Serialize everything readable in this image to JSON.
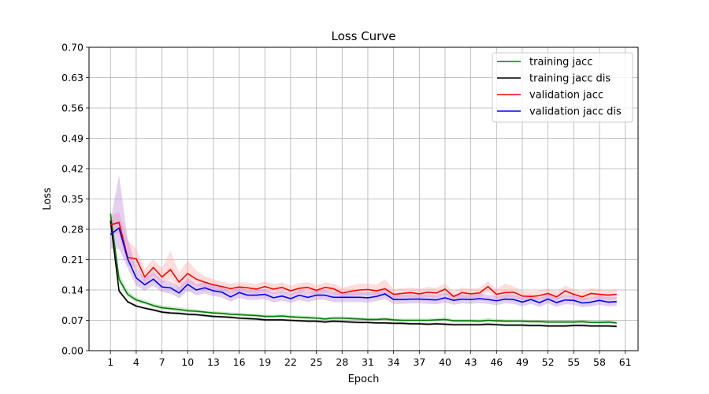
{
  "chart_data": {
    "type": "line",
    "title": "Loss Curve",
    "xlabel": "Epoch",
    "ylabel": "Loss",
    "xlim": [
      -1.5,
      62.5
    ],
    "ylim": [
      0,
      0.7
    ],
    "xticks": [
      1,
      4,
      7,
      10,
      13,
      16,
      19,
      22,
      25,
      28,
      31,
      34,
      37,
      40,
      43,
      46,
      49,
      52,
      55,
      58,
      61
    ],
    "yticks": [
      0.0,
      0.07,
      0.14,
      0.21,
      0.28,
      0.35,
      0.42,
      0.49,
      0.56,
      0.63,
      0.7
    ],
    "ytick_labels": [
      "0.00",
      "0.07",
      "0.14",
      "0.21",
      "0.28",
      "0.35",
      "0.42",
      "0.49",
      "0.56",
      "0.63",
      "0.70"
    ],
    "grid": true,
    "legend_position": "top-right",
    "x": [
      1,
      2,
      3,
      4,
      5,
      6,
      7,
      8,
      9,
      10,
      11,
      12,
      13,
      14,
      15,
      16,
      17,
      18,
      19,
      20,
      21,
      22,
      23,
      24,
      25,
      26,
      27,
      28,
      29,
      30,
      31,
      32,
      33,
      34,
      35,
      36,
      37,
      38,
      39,
      40,
      41,
      42,
      43,
      44,
      45,
      46,
      47,
      48,
      49,
      50,
      51,
      52,
      53,
      54,
      55,
      56,
      57,
      58,
      59,
      60
    ],
    "series": [
      {
        "name": "training jacc",
        "color": "#008000",
        "values": [
          0.316,
          0.165,
          0.13,
          0.117,
          0.111,
          0.104,
          0.099,
          0.097,
          0.095,
          0.092,
          0.091,
          0.089,
          0.087,
          0.086,
          0.084,
          0.083,
          0.082,
          0.081,
          0.079,
          0.079,
          0.08,
          0.078,
          0.077,
          0.076,
          0.075,
          0.073,
          0.075,
          0.075,
          0.074,
          0.073,
          0.072,
          0.072,
          0.073,
          0.071,
          0.07,
          0.07,
          0.07,
          0.07,
          0.071,
          0.072,
          0.069,
          0.069,
          0.069,
          0.068,
          0.07,
          0.069,
          0.068,
          0.068,
          0.068,
          0.067,
          0.067,
          0.066,
          0.066,
          0.066,
          0.066,
          0.067,
          0.065,
          0.065,
          0.066,
          0.064
        ],
        "band_low": [
          0.3,
          0.155,
          0.124,
          0.113,
          0.107,
          0.1,
          0.095,
          0.093,
          0.091,
          0.089,
          0.088,
          0.086,
          0.084,
          0.083,
          0.081,
          0.08,
          0.079,
          0.078,
          0.076,
          0.076,
          0.077,
          0.075,
          0.074,
          0.073,
          0.072,
          0.07,
          0.072,
          0.072,
          0.071,
          0.07,
          0.069,
          0.069,
          0.07,
          0.068,
          0.067,
          0.067,
          0.067,
          0.067,
          0.068,
          0.069,
          0.066,
          0.066,
          0.066,
          0.065,
          0.066,
          0.066,
          0.065,
          0.065,
          0.065,
          0.064,
          0.064,
          0.063,
          0.063,
          0.063,
          0.063,
          0.064,
          0.062,
          0.062,
          0.063,
          0.061
        ],
        "band_high": [
          0.332,
          0.178,
          0.138,
          0.122,
          0.116,
          0.109,
          0.104,
          0.102,
          0.1,
          0.097,
          0.095,
          0.093,
          0.091,
          0.09,
          0.088,
          0.087,
          0.086,
          0.085,
          0.083,
          0.083,
          0.084,
          0.082,
          0.081,
          0.08,
          0.079,
          0.077,
          0.079,
          0.079,
          0.078,
          0.077,
          0.076,
          0.076,
          0.077,
          0.075,
          0.074,
          0.074,
          0.074,
          0.074,
          0.075,
          0.076,
          0.073,
          0.073,
          0.073,
          0.072,
          0.075,
          0.073,
          0.072,
          0.072,
          0.072,
          0.071,
          0.071,
          0.07,
          0.07,
          0.07,
          0.07,
          0.071,
          0.069,
          0.069,
          0.07,
          0.068
        ]
      },
      {
        "name": "training jacc dis",
        "color": "#000000",
        "values": [
          0.3,
          0.138,
          0.113,
          0.103,
          0.098,
          0.094,
          0.089,
          0.087,
          0.086,
          0.084,
          0.083,
          0.081,
          0.079,
          0.078,
          0.077,
          0.075,
          0.074,
          0.073,
          0.071,
          0.071,
          0.071,
          0.07,
          0.069,
          0.068,
          0.068,
          0.066,
          0.068,
          0.067,
          0.066,
          0.065,
          0.065,
          0.064,
          0.064,
          0.063,
          0.063,
          0.062,
          0.062,
          0.061,
          0.062,
          0.061,
          0.06,
          0.06,
          0.06,
          0.06,
          0.061,
          0.06,
          0.059,
          0.059,
          0.059,
          0.058,
          0.058,
          0.057,
          0.057,
          0.057,
          0.058,
          0.058,
          0.057,
          0.057,
          0.057,
          0.056
        ],
        "band_low": [
          0.29,
          0.133,
          0.11,
          0.1,
          0.095,
          0.091,
          0.086,
          0.084,
          0.083,
          0.081,
          0.08,
          0.078,
          0.076,
          0.075,
          0.074,
          0.072,
          0.071,
          0.07,
          0.068,
          0.068,
          0.068,
          0.067,
          0.066,
          0.065,
          0.065,
          0.063,
          0.065,
          0.064,
          0.063,
          0.062,
          0.062,
          0.061,
          0.061,
          0.06,
          0.06,
          0.059,
          0.059,
          0.058,
          0.059,
          0.058,
          0.057,
          0.057,
          0.057,
          0.057,
          0.058,
          0.057,
          0.056,
          0.056,
          0.056,
          0.055,
          0.055,
          0.054,
          0.054,
          0.054,
          0.055,
          0.055,
          0.054,
          0.054,
          0.054,
          0.053
        ],
        "band_high": [
          0.31,
          0.143,
          0.116,
          0.106,
          0.101,
          0.097,
          0.092,
          0.09,
          0.089,
          0.087,
          0.086,
          0.084,
          0.082,
          0.081,
          0.08,
          0.078,
          0.077,
          0.076,
          0.074,
          0.074,
          0.074,
          0.073,
          0.072,
          0.071,
          0.071,
          0.069,
          0.071,
          0.07,
          0.069,
          0.068,
          0.068,
          0.067,
          0.067,
          0.066,
          0.066,
          0.065,
          0.065,
          0.064,
          0.065,
          0.064,
          0.063,
          0.063,
          0.063,
          0.063,
          0.064,
          0.063,
          0.062,
          0.062,
          0.062,
          0.061,
          0.061,
          0.06,
          0.06,
          0.06,
          0.061,
          0.061,
          0.06,
          0.06,
          0.06,
          0.059
        ]
      },
      {
        "name": "validation jacc",
        "color": "#ff0000",
        "band_color": "#ffaaaa",
        "values": [
          0.29,
          0.296,
          0.215,
          0.212,
          0.17,
          0.192,
          0.17,
          0.187,
          0.158,
          0.178,
          0.165,
          0.158,
          0.152,
          0.148,
          0.143,
          0.147,
          0.145,
          0.142,
          0.148,
          0.142,
          0.146,
          0.138,
          0.144,
          0.146,
          0.139,
          0.146,
          0.143,
          0.133,
          0.137,
          0.14,
          0.141,
          0.138,
          0.143,
          0.13,
          0.132,
          0.134,
          0.131,
          0.135,
          0.133,
          0.142,
          0.125,
          0.134,
          0.131,
          0.133,
          0.148,
          0.13,
          0.134,
          0.135,
          0.126,
          0.125,
          0.127,
          0.132,
          0.124,
          0.138,
          0.13,
          0.124,
          0.132,
          0.13,
          0.128,
          0.13
        ],
        "band_low": [
          0.27,
          0.27,
          0.195,
          0.192,
          0.155,
          0.175,
          0.155,
          0.165,
          0.14,
          0.158,
          0.15,
          0.145,
          0.14,
          0.137,
          0.132,
          0.135,
          0.133,
          0.131,
          0.136,
          0.131,
          0.134,
          0.128,
          0.133,
          0.134,
          0.128,
          0.134,
          0.131,
          0.123,
          0.126,
          0.128,
          0.129,
          0.127,
          0.128,
          0.12,
          0.122,
          0.124,
          0.121,
          0.124,
          0.122,
          0.13,
          0.116,
          0.123,
          0.121,
          0.122,
          0.135,
          0.12,
          0.122,
          0.123,
          0.116,
          0.116,
          0.117,
          0.121,
          0.115,
          0.126,
          0.12,
          0.115,
          0.121,
          0.12,
          0.118,
          0.12
        ],
        "band_high": [
          0.31,
          0.32,
          0.255,
          0.235,
          0.19,
          0.212,
          0.19,
          0.23,
          0.18,
          0.208,
          0.185,
          0.172,
          0.165,
          0.16,
          0.155,
          0.158,
          0.157,
          0.154,
          0.16,
          0.154,
          0.158,
          0.15,
          0.156,
          0.158,
          0.151,
          0.158,
          0.155,
          0.145,
          0.15,
          0.155,
          0.155,
          0.152,
          0.165,
          0.142,
          0.144,
          0.146,
          0.143,
          0.147,
          0.145,
          0.155,
          0.137,
          0.146,
          0.143,
          0.145,
          0.16,
          0.142,
          0.155,
          0.148,
          0.138,
          0.137,
          0.139,
          0.144,
          0.136,
          0.15,
          0.142,
          0.136,
          0.144,
          0.142,
          0.14,
          0.142
        ]
      },
      {
        "name": "validation jacc dis",
        "color": "#0000ff",
        "band_color": "#bb88dd",
        "values": [
          0.268,
          0.283,
          0.212,
          0.168,
          0.152,
          0.165,
          0.147,
          0.145,
          0.133,
          0.153,
          0.14,
          0.145,
          0.138,
          0.135,
          0.124,
          0.134,
          0.128,
          0.128,
          0.13,
          0.122,
          0.126,
          0.12,
          0.128,
          0.123,
          0.128,
          0.128,
          0.123,
          0.123,
          0.123,
          0.123,
          0.122,
          0.125,
          0.131,
          0.118,
          0.118,
          0.119,
          0.119,
          0.118,
          0.117,
          0.122,
          0.116,
          0.119,
          0.118,
          0.12,
          0.118,
          0.115,
          0.119,
          0.118,
          0.112,
          0.118,
          0.111,
          0.119,
          0.111,
          0.117,
          0.116,
          0.11,
          0.112,
          0.116,
          0.112,
          0.113
        ],
        "band_low": [
          0.235,
          0.235,
          0.19,
          0.15,
          0.138,
          0.15,
          0.135,
          0.132,
          0.121,
          0.138,
          0.128,
          0.132,
          0.126,
          0.123,
          0.113,
          0.122,
          0.117,
          0.117,
          0.119,
          0.111,
          0.115,
          0.11,
          0.117,
          0.112,
          0.117,
          0.117,
          0.112,
          0.112,
          0.112,
          0.112,
          0.111,
          0.114,
          0.119,
          0.108,
          0.108,
          0.109,
          0.109,
          0.108,
          0.107,
          0.111,
          0.106,
          0.109,
          0.108,
          0.11,
          0.108,
          0.105,
          0.109,
          0.108,
          0.102,
          0.108,
          0.101,
          0.109,
          0.101,
          0.107,
          0.106,
          0.1,
          0.102,
          0.106,
          0.102,
          0.103
        ],
        "band_high": [
          0.3,
          0.405,
          0.26,
          0.19,
          0.168,
          0.182,
          0.162,
          0.16,
          0.147,
          0.168,
          0.153,
          0.158,
          0.151,
          0.148,
          0.136,
          0.147,
          0.14,
          0.14,
          0.142,
          0.134,
          0.138,
          0.131,
          0.14,
          0.135,
          0.14,
          0.14,
          0.135,
          0.135,
          0.135,
          0.135,
          0.134,
          0.137,
          0.143,
          0.129,
          0.129,
          0.13,
          0.13,
          0.129,
          0.128,
          0.134,
          0.127,
          0.13,
          0.129,
          0.131,
          0.129,
          0.126,
          0.13,
          0.129,
          0.123,
          0.129,
          0.122,
          0.13,
          0.122,
          0.128,
          0.127,
          0.121,
          0.123,
          0.127,
          0.123,
          0.124
        ]
      }
    ]
  }
}
